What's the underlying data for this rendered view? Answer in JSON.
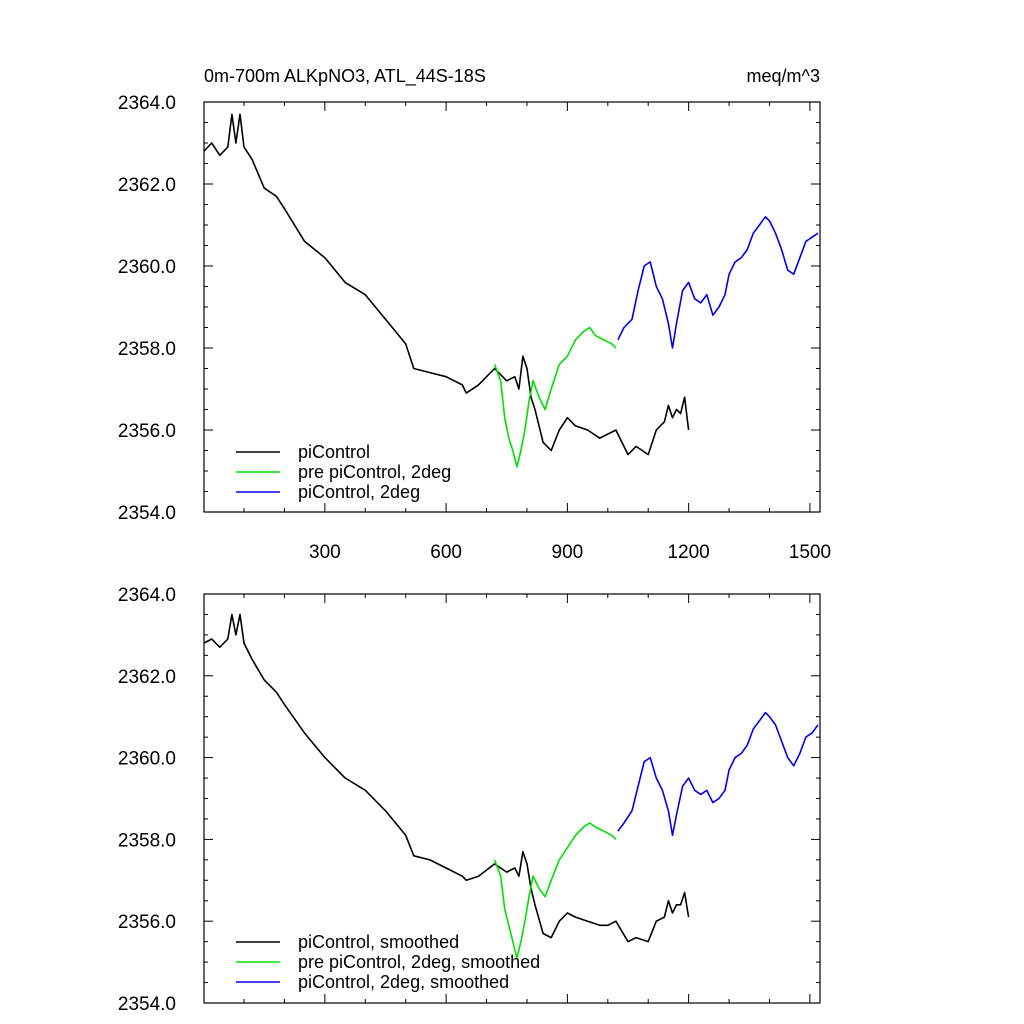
{
  "chart_data": [
    {
      "type": "line",
      "title": "0m-700m ALKpNO3, ATL_44S-18S",
      "units": "meq/m^3",
      "ylim": [
        2354.0,
        2364.0
      ],
      "yticks": [
        "2354.0",
        "2356.0",
        "2358.0",
        "2360.0",
        "2362.0",
        "2364.0"
      ],
      "xlim": [
        1,
        1525
      ],
      "xticks": [
        "300",
        "600",
        "900",
        "1200",
        "1500"
      ],
      "legend_position": "bottom-left",
      "series": [
        {
          "name": "piControl",
          "color": "#000000",
          "x": [
            1,
            20,
            40,
            60,
            70,
            80,
            90,
            100,
            120,
            150,
            180,
            200,
            250,
            300,
            350,
            400,
            450,
            500,
            520,
            560,
            600,
            640,
            650,
            680,
            720,
            750,
            770,
            780,
            790,
            800,
            810,
            820,
            840,
            860,
            880,
            900,
            920,
            950,
            980,
            1000,
            1020,
            1050,
            1070,
            1100,
            1120,
            1140,
            1150,
            1160,
            1170,
            1180,
            1190,
            1200
          ],
          "values": [
            2362.8,
            2363.0,
            2362.7,
            2362.9,
            2363.7,
            2363.0,
            2363.7,
            2362.9,
            2362.6,
            2361.9,
            2361.7,
            2361.4,
            2360.6,
            2360.2,
            2359.6,
            2359.3,
            2358.7,
            2358.1,
            2357.5,
            2357.4,
            2357.3,
            2357.1,
            2356.9,
            2357.1,
            2357.5,
            2357.2,
            2357.3,
            2357.0,
            2357.8,
            2357.5,
            2356.8,
            2356.5,
            2355.7,
            2355.5,
            2356.0,
            2356.3,
            2356.1,
            2356.0,
            2355.8,
            2355.9,
            2356.0,
            2355.4,
            2355.6,
            2355.4,
            2356.0,
            2356.2,
            2356.6,
            2356.3,
            2356.5,
            2356.4,
            2356.8,
            2356.0
          ]
        },
        {
          "name": "pre piControl, 2deg",
          "color": "#00e000",
          "x": [
            720,
            735,
            745,
            755,
            765,
            775,
            785,
            795,
            805,
            815,
            830,
            845,
            860,
            880,
            900,
            920,
            940,
            955,
            970,
            990,
            1010,
            1020
          ],
          "values": [
            2357.6,
            2357.2,
            2356.3,
            2355.8,
            2355.5,
            2355.1,
            2355.5,
            2356.0,
            2356.7,
            2357.2,
            2356.8,
            2356.5,
            2357.0,
            2357.6,
            2357.8,
            2358.2,
            2358.4,
            2358.5,
            2358.3,
            2358.2,
            2358.1,
            2358.0
          ]
        },
        {
          "name": "piControl, 2deg",
          "color": "#0000ee",
          "x": [
            1025,
            1040,
            1060,
            1075,
            1090,
            1105,
            1120,
            1135,
            1150,
            1160,
            1170,
            1185,
            1200,
            1215,
            1230,
            1245,
            1260,
            1275,
            1290,
            1300,
            1315,
            1330,
            1345,
            1360,
            1375,
            1390,
            1400,
            1415,
            1430,
            1445,
            1460,
            1475,
            1490,
            1505,
            1520
          ],
          "values": [
            2358.2,
            2358.5,
            2358.7,
            2359.4,
            2360.0,
            2360.1,
            2359.5,
            2359.2,
            2358.6,
            2358.0,
            2358.6,
            2359.4,
            2359.6,
            2359.2,
            2359.1,
            2359.3,
            2358.8,
            2359.0,
            2359.3,
            2359.8,
            2360.1,
            2360.2,
            2360.4,
            2360.8,
            2361.0,
            2361.2,
            2361.1,
            2360.8,
            2360.4,
            2359.9,
            2359.8,
            2360.2,
            2360.6,
            2360.7,
            2360.8
          ]
        }
      ]
    },
    {
      "type": "line",
      "title": "",
      "ylim": [
        2354.0,
        2364.0
      ],
      "yticks": [
        "2354.0",
        "2356.0",
        "2358.0",
        "2360.0",
        "2362.0",
        "2364.0"
      ],
      "xlim": [
        1,
        1525
      ],
      "xticks": [],
      "legend_position": "bottom-left",
      "series": [
        {
          "name": "piControl, smoothed",
          "color": "#000000",
          "x": [
            1,
            20,
            40,
            60,
            70,
            80,
            90,
            100,
            120,
            150,
            180,
            200,
            250,
            300,
            350,
            400,
            450,
            500,
            520,
            560,
            600,
            640,
            650,
            680,
            720,
            750,
            770,
            780,
            790,
            800,
            810,
            820,
            840,
            860,
            880,
            900,
            920,
            950,
            980,
            1000,
            1020,
            1050,
            1070,
            1100,
            1120,
            1140,
            1150,
            1160,
            1170,
            1180,
            1190,
            1200
          ],
          "values": [
            2362.8,
            2362.9,
            2362.7,
            2362.9,
            2363.5,
            2363.0,
            2363.5,
            2362.8,
            2362.4,
            2361.9,
            2361.6,
            2361.3,
            2360.6,
            2360.0,
            2359.5,
            2359.2,
            2358.7,
            2358.1,
            2357.6,
            2357.5,
            2357.3,
            2357.1,
            2357.0,
            2357.1,
            2357.4,
            2357.2,
            2357.3,
            2357.1,
            2357.7,
            2357.4,
            2356.8,
            2356.4,
            2355.7,
            2355.6,
            2356.0,
            2356.2,
            2356.1,
            2356.0,
            2355.9,
            2355.9,
            2356.0,
            2355.5,
            2355.6,
            2355.5,
            2356.0,
            2356.1,
            2356.5,
            2356.2,
            2356.4,
            2356.4,
            2356.7,
            2356.1
          ]
        },
        {
          "name": "pre piControl, 2deg, smoothed",
          "color": "#00e000",
          "x": [
            720,
            735,
            745,
            755,
            765,
            775,
            785,
            795,
            805,
            815,
            830,
            845,
            860,
            880,
            900,
            920,
            940,
            955,
            970,
            990,
            1010,
            1020
          ],
          "values": [
            2357.5,
            2357.1,
            2356.3,
            2355.9,
            2355.5,
            2355.1,
            2355.5,
            2356.0,
            2356.6,
            2357.1,
            2356.8,
            2356.6,
            2357.0,
            2357.5,
            2357.8,
            2358.1,
            2358.3,
            2358.4,
            2358.3,
            2358.2,
            2358.1,
            2358.0
          ]
        },
        {
          "name": "piControl, 2deg, smoothed",
          "color": "#0000ee",
          "x": [
            1025,
            1040,
            1060,
            1075,
            1090,
            1105,
            1120,
            1135,
            1150,
            1160,
            1170,
            1185,
            1200,
            1215,
            1230,
            1245,
            1260,
            1275,
            1290,
            1300,
            1315,
            1330,
            1345,
            1360,
            1375,
            1390,
            1400,
            1415,
            1430,
            1445,
            1460,
            1475,
            1490,
            1505,
            1520
          ],
          "values": [
            2358.2,
            2358.4,
            2358.7,
            2359.3,
            2359.9,
            2360.0,
            2359.5,
            2359.2,
            2358.7,
            2358.1,
            2358.6,
            2359.3,
            2359.5,
            2359.2,
            2359.1,
            2359.2,
            2358.9,
            2359.0,
            2359.2,
            2359.7,
            2360.0,
            2360.1,
            2360.3,
            2360.7,
            2360.9,
            2361.1,
            2361.0,
            2360.8,
            2360.4,
            2360.0,
            2359.8,
            2360.1,
            2360.5,
            2360.6,
            2360.8
          ]
        }
      ]
    }
  ]
}
